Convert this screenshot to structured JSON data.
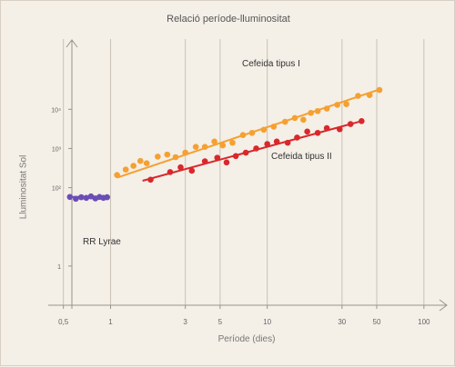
{
  "chart_data": {
    "type": "scatter",
    "title": "Relació període-lluminositat",
    "xlabel": "Període (dies)",
    "ylabel": "Lluminositat Sol",
    "x_scale": "log",
    "y_scale": "log",
    "xlim": [
      0.4,
      140
    ],
    "ylim": [
      0.1,
      500000
    ],
    "x_ticks": [
      {
        "value": 0.5,
        "label": "0,5"
      },
      {
        "value": 1,
        "label": "1"
      },
      {
        "value": 3,
        "label": "3"
      },
      {
        "value": 5,
        "label": "5"
      },
      {
        "value": 10,
        "label": "10"
      },
      {
        "value": 30,
        "label": "30"
      },
      {
        "value": 50,
        "label": "50"
      },
      {
        "value": 100,
        "label": "100"
      }
    ],
    "y_ticks": [
      {
        "value": 1,
        "label": "1"
      },
      {
        "value": 100,
        "label": "10²"
      },
      {
        "value": 1000,
        "label": "10³"
      },
      {
        "value": 10000,
        "label": "10⁴"
      }
    ],
    "grid": "vertical",
    "series": [
      {
        "name": "Cefeida tipus I",
        "color": "#f5a030",
        "x": [
          1.1,
          1.25,
          1.4,
          1.55,
          1.7,
          2.0,
          2.3,
          2.6,
          3.0,
          3.5,
          4.0,
          4.6,
          5.2,
          6.0,
          7.0,
          8.0,
          9.5,
          11,
          13,
          15,
          17,
          19,
          21,
          24,
          28,
          32,
          38,
          45,
          52
        ],
        "y": [
          210,
          290,
          360,
          480,
          420,
          620,
          700,
          600,
          780,
          1100,
          1100,
          1500,
          1200,
          1400,
          2200,
          2500,
          3000,
          3600,
          4800,
          6000,
          5400,
          8100,
          9000,
          10400,
          13000,
          13500,
          22000,
          23000,
          31000
        ],
        "fit": {
          "x": [
            1.1,
            52
          ],
          "y": [
            180,
            32000
          ]
        }
      },
      {
        "name": "Cefeida tipus II",
        "color": "#d8282c",
        "x": [
          1.8,
          2.4,
          2.8,
          3.3,
          4.0,
          4.8,
          5.5,
          6.3,
          7.3,
          8.5,
          10,
          11.5,
          13.5,
          15.5,
          18,
          21,
          24,
          29,
          34,
          40
        ],
        "y": [
          160,
          250,
          330,
          270,
          470,
          580,
          440,
          640,
          780,
          1000,
          1300,
          1500,
          1400,
          1900,
          2700,
          2500,
          3300,
          3100,
          4200,
          5000
        ],
        "fit": {
          "x": [
            1.6,
            40
          ],
          "y": [
            150,
            5000
          ]
        }
      },
      {
        "name": "RR Lyrae",
        "color": "#6a4eb5",
        "x": [
          0.55,
          0.6,
          0.65,
          0.7,
          0.75,
          0.8,
          0.85,
          0.9,
          0.95
        ],
        "y": [
          58,
          52,
          57,
          55,
          60,
          53,
          58,
          55,
          57
        ],
        "fit": {
          "x": [
            0.53,
            0.97
          ],
          "y": [
            58,
            58
          ]
        }
      }
    ]
  }
}
